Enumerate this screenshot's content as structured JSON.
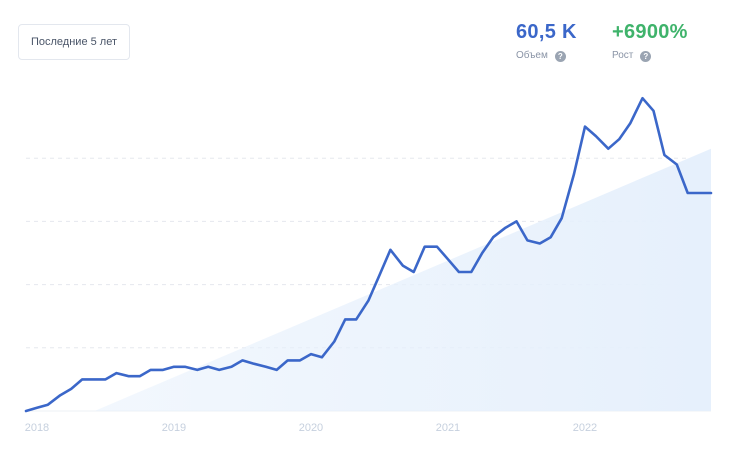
{
  "header": {
    "period_label": "Последние 5 лет",
    "volume": {
      "value": "60,5 K",
      "label": "Объем",
      "help": "?"
    },
    "growth": {
      "value": "+6900%",
      "label": "Рост",
      "help": "?"
    }
  },
  "colors": {
    "line": "#3b67c9",
    "trend_fill": "#e6f0fc",
    "gridline": "#e5e8ee",
    "volume_value": "#3b67c9",
    "growth_value": "#3fb36b",
    "tick_label": "#c6d0de"
  },
  "chart_data": {
    "type": "line",
    "title": "",
    "xlabel": "",
    "ylabel": "",
    "x_ticks": [
      "2018",
      "2019",
      "2020",
      "2021",
      "2022"
    ],
    "x_tick_positions": [
      2018.0,
      2019.0,
      2020.0,
      2021.0,
      2022.0
    ],
    "xlim": [
      2017.92,
      2022.92
    ],
    "ylim": [
      0,
      100
    ],
    "y_gridlines": [
      20,
      40,
      60,
      80
    ],
    "y_tick_labels_shown": false,
    "grid": true,
    "legend": "none",
    "series": [
      {
        "x": [
          2017.92,
          2018.0,
          2018.08,
          2018.17,
          2018.25,
          2018.33,
          2018.42,
          2018.5,
          2018.58,
          2018.67,
          2018.75,
          2018.83,
          2018.92,
          2019.0,
          2019.08,
          2019.17,
          2019.25,
          2019.33,
          2019.42,
          2019.5,
          2019.58,
          2019.67,
          2019.75,
          2019.83,
          2019.92,
          2020.0,
          2020.08,
          2020.17,
          2020.25,
          2020.33,
          2020.42,
          2020.5,
          2020.58,
          2020.67,
          2020.75,
          2020.83,
          2020.92,
          2021.0,
          2021.08,
          2021.17,
          2021.25,
          2021.33,
          2021.42,
          2021.5,
          2021.58,
          2021.67,
          2021.75,
          2021.83,
          2021.92,
          2022.0,
          2022.08,
          2022.17,
          2022.25,
          2022.33,
          2022.42,
          2022.5,
          2022.58,
          2022.67,
          2022.75,
          2022.83,
          2022.92
        ],
        "y": [
          0,
          1,
          2,
          5,
          7,
          10,
          10,
          10,
          12,
          11,
          11,
          13,
          13,
          14,
          14,
          13,
          14,
          13,
          14,
          16,
          15,
          14,
          13,
          16,
          16,
          18,
          17,
          22,
          29,
          29,
          35,
          43,
          51,
          46,
          44,
          52,
          52,
          48,
          44,
          44,
          50,
          55,
          58,
          60,
          54,
          53,
          55,
          61,
          75,
          90,
          87,
          83,
          86,
          91,
          99,
          95,
          81,
          78,
          69,
          69,
          69
        ]
      }
    ],
    "trend_area": {
      "x_start": 2018.42,
      "x_end": 2022.92,
      "y_start": 0,
      "y_end": 83
    }
  }
}
